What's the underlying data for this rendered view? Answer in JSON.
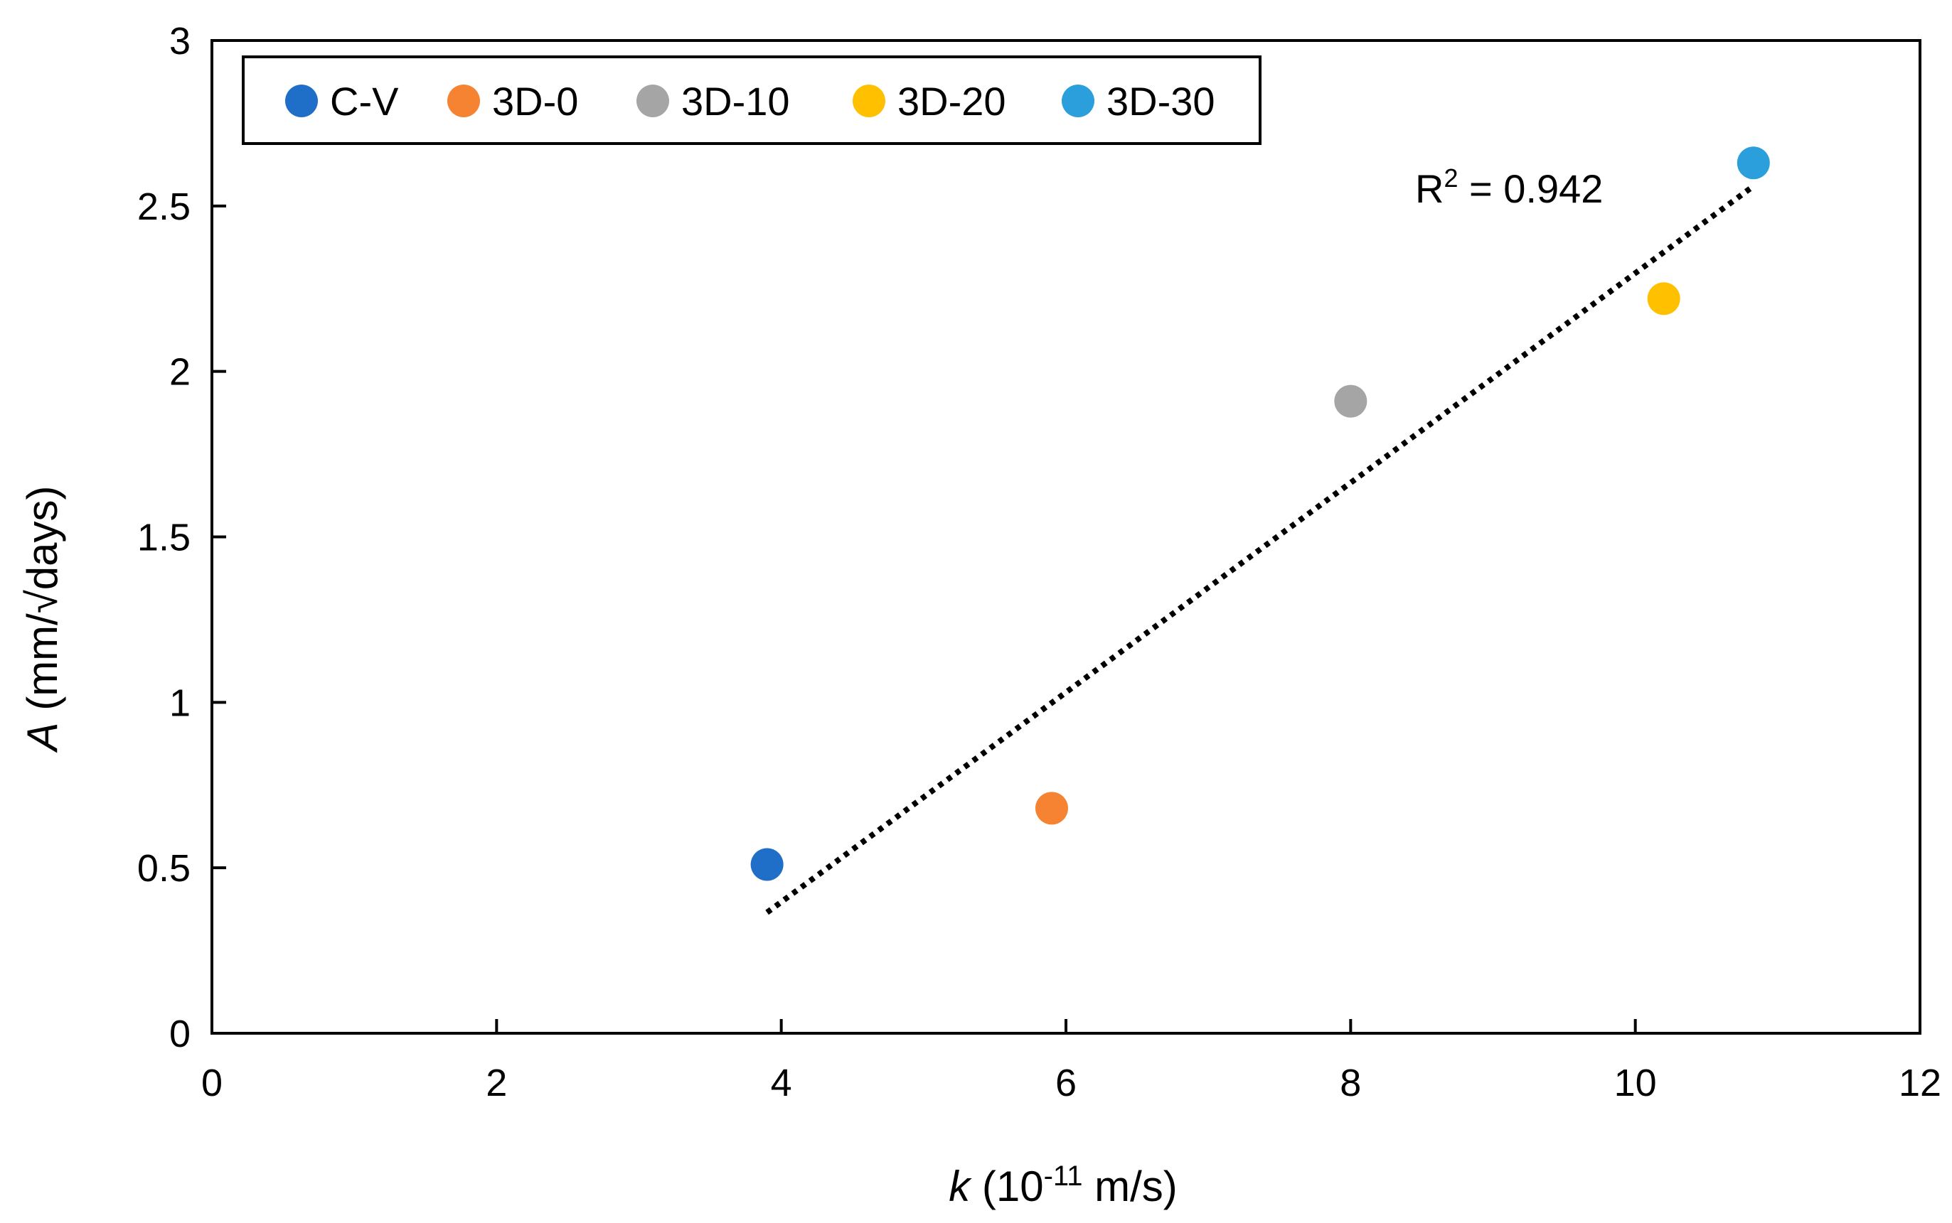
{
  "chart_data": {
    "type": "scatter",
    "title": "",
    "xlabel": {
      "italic": "k",
      "pre": " (10",
      "sup": "-11",
      "post": " m/s)"
    },
    "ylabel": {
      "italic": "A",
      "rest": " (mm/√days)"
    },
    "xlim": [
      0,
      12
    ],
    "ylim": [
      0,
      3
    ],
    "xticks": [
      0,
      2,
      4,
      6,
      8,
      10,
      12
    ],
    "yticks": [
      0,
      0.5,
      1,
      1.5,
      2,
      2.5,
      3
    ],
    "xtick_labels": [
      "0",
      "2",
      "4",
      "6",
      "8",
      "10",
      "12"
    ],
    "ytick_labels": [
      "0",
      "0.5",
      "1",
      "1.5",
      "2",
      "2.5",
      "3"
    ],
    "grid": false,
    "legend_position": "top-left",
    "series": [
      {
        "name": "C-V",
        "color": "#1f6fc8",
        "x": 3.9,
        "y": 0.51
      },
      {
        "name": "3D-0",
        "color": "#f58331",
        "x": 5.9,
        "y": 0.68
      },
      {
        "name": "3D-10",
        "color": "#a5a5a5",
        "x": 8.0,
        "y": 1.91
      },
      {
        "name": "3D-20",
        "color": "#ffc000",
        "x": 10.2,
        "y": 2.22
      },
      {
        "name": "3D-30",
        "color": "#2b9fdc",
        "x": 10.83,
        "y": 2.63
      }
    ],
    "trendline": {
      "style": "dotted",
      "color": "#000000",
      "x": [
        3.9,
        10.83
      ],
      "y": [
        0.365,
        2.56
      ],
      "annotation": {
        "base": "R",
        "sup": "2",
        "rest": " = 0.942"
      }
    }
  }
}
